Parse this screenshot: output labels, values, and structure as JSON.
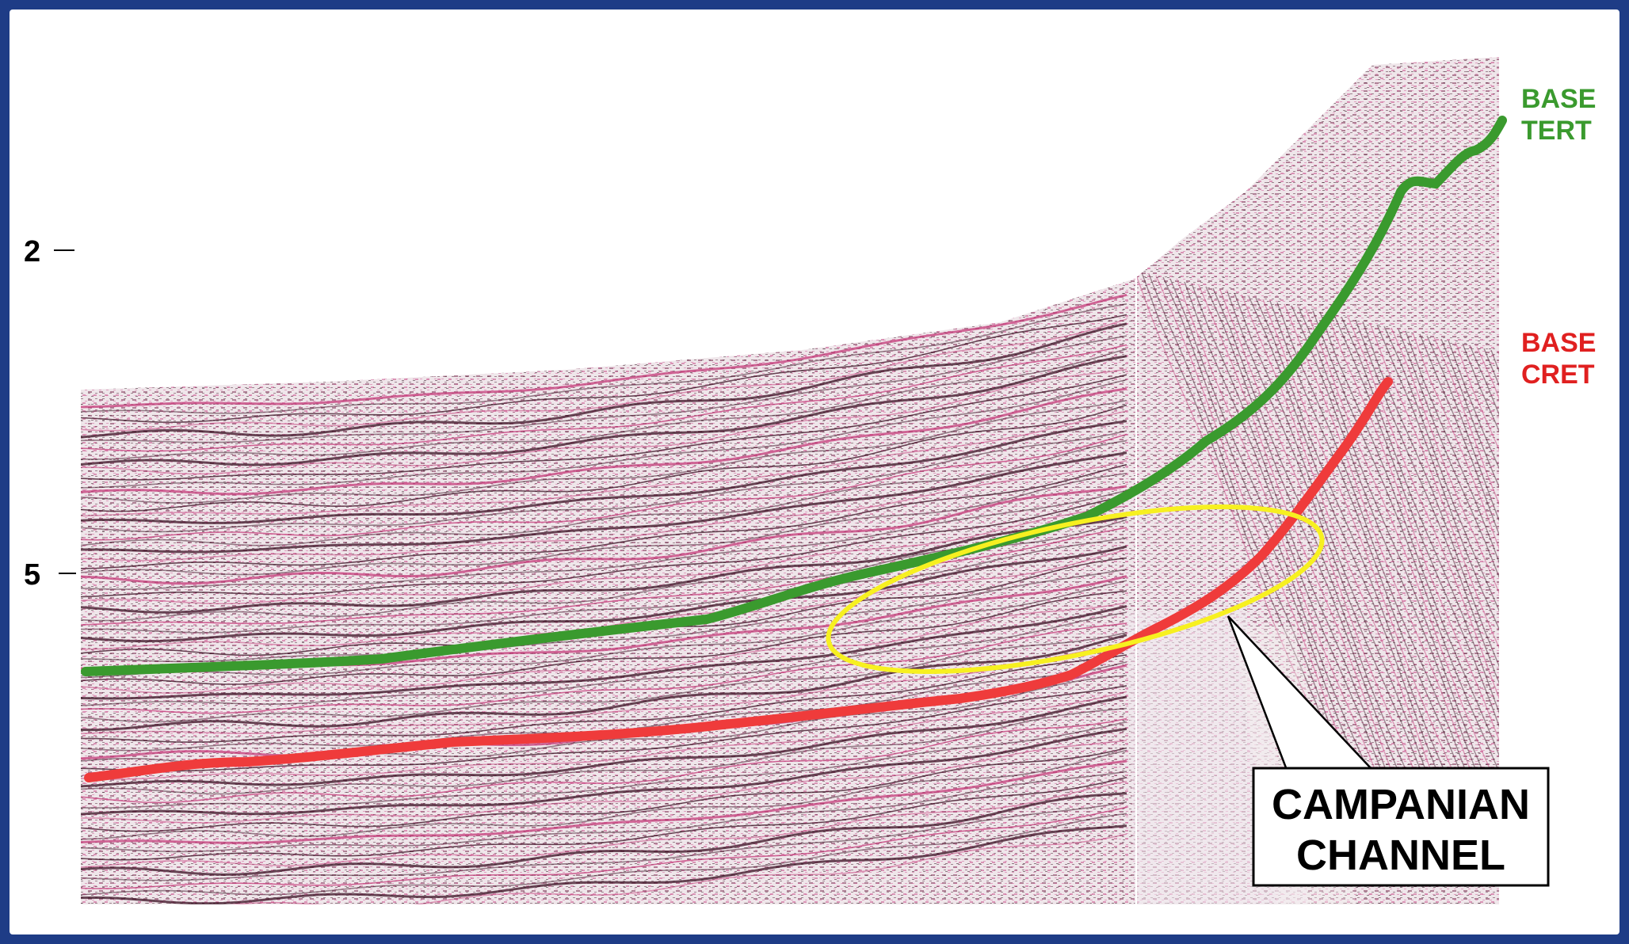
{
  "axis": {
    "ticks": [
      {
        "label": "2"
      },
      {
        "label": "5"
      }
    ]
  },
  "horizons": [
    {
      "label_line1": "BASE",
      "label_line2": "TERT",
      "color": "#3a9a2e"
    },
    {
      "label_line1": "BASE",
      "label_line2": "CRET",
      "color": "#e02020"
    }
  ],
  "callout": {
    "line1": "CAMPANIAN",
    "line2": "CHANNEL"
  },
  "colors": {
    "seismic_background": "#ece1e6",
    "seismic_reflector_dark": "#3a0f22",
    "seismic_reflector_pink": "#c43a78",
    "highlight_ellipse": "#f7f020",
    "frame_blue": "#1e3c86"
  }
}
